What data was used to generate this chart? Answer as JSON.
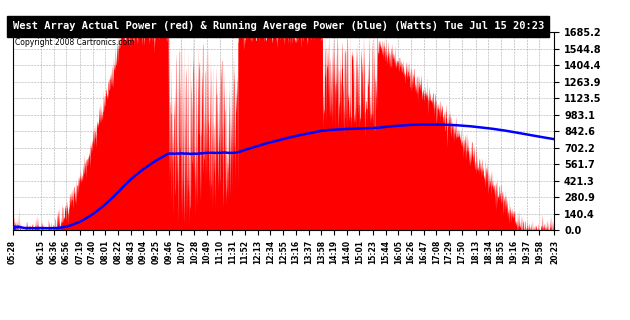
{
  "title": "West Array Actual Power (red) & Running Average Power (blue) (Watts) Tue Jul 15 20:23",
  "copyright": "Copyright 2008 Cartronics.com",
  "ylabel_values": [
    0.0,
    140.4,
    280.9,
    421.3,
    561.7,
    702.2,
    842.6,
    983.1,
    1123.5,
    1263.9,
    1404.4,
    1544.8,
    1685.2
  ],
  "ymax": 1685.2,
  "ymin": 0.0,
  "bg_color": "#ffffff",
  "grid_color": "#aaaaaa",
  "fill_color": "#ff0000",
  "line_color": "#0000ff",
  "x_tick_labels": [
    "05:28",
    "06:15",
    "06:36",
    "06:56",
    "07:19",
    "07:40",
    "08:01",
    "08:22",
    "08:43",
    "09:04",
    "09:25",
    "09:46",
    "10:07",
    "10:28",
    "10:49",
    "11:10",
    "11:31",
    "11:52",
    "12:13",
    "12:34",
    "12:55",
    "13:16",
    "13:37",
    "13:58",
    "14:19",
    "14:40",
    "15:01",
    "15:23",
    "15:44",
    "16:05",
    "16:26",
    "16:47",
    "17:08",
    "17:29",
    "17:50",
    "18:13",
    "18:34",
    "18:55",
    "19:16",
    "19:37",
    "19:58",
    "20:23"
  ]
}
